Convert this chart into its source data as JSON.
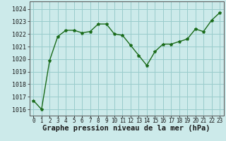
{
  "x": [
    0,
    1,
    2,
    3,
    4,
    5,
    6,
    7,
    8,
    9,
    10,
    11,
    12,
    13,
    14,
    15,
    16,
    17,
    18,
    19,
    20,
    21,
    22,
    23
  ],
  "y": [
    1016.7,
    1016.0,
    1019.9,
    1021.8,
    1022.3,
    1022.3,
    1022.1,
    1022.2,
    1022.8,
    1022.8,
    1022.0,
    1021.9,
    1021.1,
    1020.3,
    1019.5,
    1020.6,
    1021.2,
    1021.2,
    1021.4,
    1021.6,
    1022.4,
    1022.2,
    1023.1,
    1023.7
  ],
  "line_color": "#1a6b1a",
  "marker": "*",
  "marker_size": 3.0,
  "background_color": "#cceaea",
  "grid_color": "#99cccc",
  "xlabel": "Graphe pression niveau de la mer (hPa)",
  "xlabel_fontsize": 7.5,
  "ylabel_ticks": [
    1016,
    1017,
    1018,
    1019,
    1020,
    1021,
    1022,
    1023,
    1024
  ],
  "xlim": [
    -0.5,
    23.5
  ],
  "ylim": [
    1015.5,
    1024.6
  ],
  "xtick_labels": [
    "0",
    "1",
    "2",
    "3",
    "4",
    "5",
    "6",
    "7",
    "8",
    "9",
    "10",
    "11",
    "12",
    "13",
    "14",
    "15",
    "16",
    "17",
    "18",
    "19",
    "20",
    "21",
    "22",
    "23"
  ],
  "ytick_fontsize": 6.0,
  "xtick_fontsize": 5.5,
  "line_width": 1.0
}
